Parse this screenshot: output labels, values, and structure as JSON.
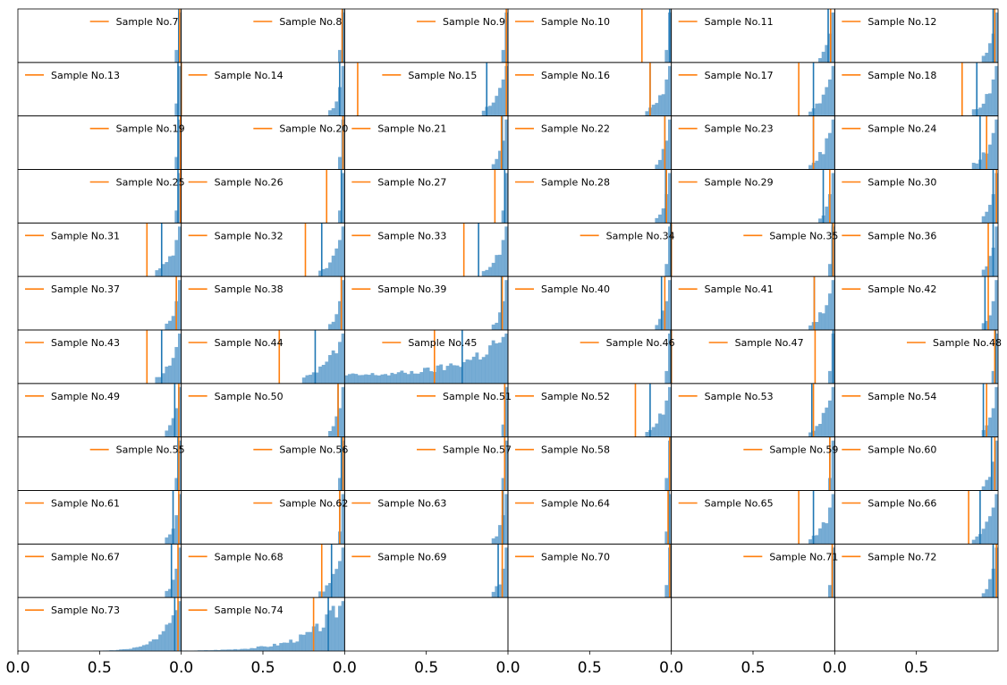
{
  "chart_data": {
    "type": "histogram-grid",
    "rows": 12,
    "cols": 6,
    "xlim": [
      0,
      1
    ],
    "x_ticks": [
      {
        "value": 0.0,
        "label": "0.0"
      },
      {
        "value": 0.5,
        "label": "0.5"
      }
    ],
    "x_tick_labels_on_row": 12,
    "y_ticks_shown": false,
    "grid": false,
    "legend_placement": "upper",
    "colors": {
      "histogram": "#4a90c6",
      "histogram_alpha": 0.75,
      "vertical_line_blue": "#1f77b4",
      "vertical_line_orange": "#ff7f0e",
      "axes_frame": "#000000"
    },
    "panels": [
      {
        "label": "Sample No.7",
        "orange": 0.99,
        "blue": 0.985,
        "legend": "right",
        "shape": "peak"
      },
      {
        "label": "Sample No.8",
        "orange": 0.985,
        "blue": 0.99,
        "legend": "right",
        "shape": "peak"
      },
      {
        "label": "Sample No.9",
        "orange": 0.99,
        "blue": 0.99,
        "legend": "right",
        "shape": "peak"
      },
      {
        "label": "Sample No.10",
        "orange": 0.82,
        "blue": 0.99,
        "legend": "left",
        "shape": "peak"
      },
      {
        "label": "Sample No.11",
        "orange": 0.975,
        "blue": 0.96,
        "legend": "left",
        "shape": "narrow"
      },
      {
        "label": "Sample No.12",
        "orange": 0.98,
        "blue": 0.97,
        "legend": "left",
        "shape": "narrow"
      },
      {
        "label": "Sample No.13",
        "orange": 1.0,
        "blue": 0.98,
        "legend": "left",
        "shape": "peak"
      },
      {
        "label": "Sample No.14",
        "orange": 1.08,
        "blue": 0.97,
        "legend": "left",
        "shape": "narrow"
      },
      {
        "label": "Sample No.15",
        "orange": 0.99,
        "blue": 0.87,
        "legend": "mid",
        "shape": "medium"
      },
      {
        "label": "Sample No.16",
        "orange": 0.87,
        "blue": 0.87,
        "legend": "left",
        "shape": "medium"
      },
      {
        "label": "Sample No.17",
        "orange": 0.78,
        "blue": 0.87,
        "legend": "left",
        "shape": "medium"
      },
      {
        "label": "Sample No.18",
        "orange": 0.78,
        "blue": 0.87,
        "legend": "left",
        "shape": "medium"
      },
      {
        "label": "Sample No.19",
        "orange": 0.995,
        "blue": 0.98,
        "legend": "right",
        "shape": "peak"
      },
      {
        "label": "Sample No.20",
        "orange": 0.99,
        "blue": 0.99,
        "legend": "right",
        "shape": "peak"
      },
      {
        "label": "Sample No.21",
        "orange": 0.96,
        "blue": 0.965,
        "legend": "left",
        "shape": "narrow"
      },
      {
        "label": "Sample No.22",
        "orange": 0.96,
        "blue": 0.96,
        "legend": "left",
        "shape": "narrow"
      },
      {
        "label": "Sample No.23",
        "orange": 0.87,
        "blue": 0.87,
        "legend": "left",
        "shape": "medium"
      },
      {
        "label": "Sample No.24",
        "orange": 0.93,
        "blue": 0.89,
        "legend": "left",
        "shape": "medium"
      },
      {
        "label": "Sample No.25",
        "orange": 0.995,
        "blue": 0.98,
        "legend": "right",
        "shape": "peak"
      },
      {
        "label": "Sample No.26",
        "orange": 0.89,
        "blue": 0.98,
        "legend": "left",
        "shape": "peak"
      },
      {
        "label": "Sample No.27",
        "orange": 0.92,
        "blue": 0.98,
        "legend": "left",
        "shape": "peak"
      },
      {
        "label": "Sample No.28",
        "orange": 0.97,
        "blue": 0.965,
        "legend": "left",
        "shape": "narrow"
      },
      {
        "label": "Sample No.29",
        "orange": 0.97,
        "blue": 0.93,
        "legend": "left",
        "shape": "narrow"
      },
      {
        "label": "Sample No.30",
        "orange": 0.99,
        "blue": 0.97,
        "legend": "left",
        "shape": "narrow"
      },
      {
        "label": "Sample No.31",
        "orange": 0.79,
        "blue": 0.88,
        "legend": "left",
        "shape": "medium"
      },
      {
        "label": "Sample No.32",
        "orange": 0.76,
        "blue": 0.86,
        "legend": "left",
        "shape": "medium"
      },
      {
        "label": "Sample No.33",
        "orange": 0.73,
        "blue": 0.82,
        "legend": "left",
        "shape": "medium"
      },
      {
        "label": "Sample No.34",
        "orange": 1.0,
        "blue": 0.995,
        "legend": "right",
        "shape": "peak"
      },
      {
        "label": "Sample No.35",
        "orange": 0.99,
        "blue": 0.985,
        "legend": "right",
        "shape": "peak"
      },
      {
        "label": "Sample No.36",
        "orange": 0.94,
        "blue": 0.97,
        "legend": "left",
        "shape": "narrow"
      },
      {
        "label": "Sample No.37",
        "orange": 0.97,
        "blue": 0.97,
        "legend": "left",
        "shape": "narrow"
      },
      {
        "label": "Sample No.38",
        "orange": 0.98,
        "blue": 0.98,
        "legend": "left",
        "shape": "narrow"
      },
      {
        "label": "Sample No.39",
        "orange": 0.965,
        "blue": 0.96,
        "legend": "left",
        "shape": "narrow"
      },
      {
        "label": "Sample No.40",
        "orange": 0.96,
        "blue": 0.94,
        "legend": "left",
        "shape": "narrow"
      },
      {
        "label": "Sample No.41",
        "orange": 0.875,
        "blue": 0.875,
        "legend": "left",
        "shape": "medium"
      },
      {
        "label": "Sample No.42",
        "orange": 0.94,
        "blue": 0.92,
        "legend": "left",
        "shape": "narrow"
      },
      {
        "label": "Sample No.43",
        "orange": 0.79,
        "blue": 0.88,
        "legend": "left",
        "shape": "medium"
      },
      {
        "label": "Sample No.44",
        "orange": 0.6,
        "blue": 0.82,
        "legend": "left",
        "shape": "wide"
      },
      {
        "label": "Sample No.45",
        "orange": 0.55,
        "blue": 0.72,
        "legend": "mid",
        "shape": "verywide"
      },
      {
        "label": "Sample No.46",
        "orange": 1.0,
        "blue": 0.995,
        "legend": "right",
        "shape": "peak"
      },
      {
        "label": "Sample No.47",
        "orange": 0.88,
        "blue": 0.99,
        "legend": "mid",
        "shape": "peak"
      },
      {
        "label": "Sample No.48",
        "orange": 0.98,
        "blue": 0.985,
        "legend": "right",
        "shape": "peak"
      },
      {
        "label": "Sample No.49",
        "orange": 0.985,
        "blue": 0.96,
        "legend": "left",
        "shape": "narrow"
      },
      {
        "label": "Sample No.50",
        "orange": 0.96,
        "blue": 0.96,
        "legend": "left",
        "shape": "narrow"
      },
      {
        "label": "Sample No.51",
        "orange": 0.98,
        "blue": 0.98,
        "legend": "right",
        "shape": "peak"
      },
      {
        "label": "Sample No.52",
        "orange": 0.78,
        "blue": 0.87,
        "legend": "left",
        "shape": "medium"
      },
      {
        "label": "Sample No.53",
        "orange": 0.87,
        "blue": 0.86,
        "legend": "left",
        "shape": "medium"
      },
      {
        "label": "Sample No.54",
        "orange": 0.93,
        "blue": 0.91,
        "legend": "left",
        "shape": "narrow"
      },
      {
        "label": "Sample No.55",
        "orange": 0.985,
        "blue": 0.98,
        "legend": "right",
        "shape": "peak"
      },
      {
        "label": "Sample No.56",
        "orange": 0.99,
        "blue": 0.98,
        "legend": "right",
        "shape": "peak"
      },
      {
        "label": "Sample No.57",
        "orange": 0.98,
        "blue": 0.98,
        "legend": "right",
        "shape": "peak"
      },
      {
        "label": "Sample No.58",
        "orange": 0.99,
        "blue": 0.995,
        "legend": "left",
        "shape": "peak"
      },
      {
        "label": "Sample No.59",
        "orange": 0.97,
        "blue": 0.97,
        "legend": "right",
        "shape": "peak"
      },
      {
        "label": "Sample No.60",
        "orange": 0.98,
        "blue": 0.96,
        "legend": "left",
        "shape": "narrow"
      },
      {
        "label": "Sample No.61",
        "orange": 0.985,
        "blue": 0.95,
        "legend": "left",
        "shape": "narrow"
      },
      {
        "label": "Sample No.62",
        "orange": 0.97,
        "blue": 0.97,
        "legend": "right",
        "shape": "peak"
      },
      {
        "label": "Sample No.63",
        "orange": 0.965,
        "blue": 0.97,
        "legend": "left",
        "shape": "narrow"
      },
      {
        "label": "Sample No.64",
        "orange": 0.98,
        "blue": 0.985,
        "legend": "left",
        "shape": "peak"
      },
      {
        "label": "Sample No.65",
        "orange": 0.78,
        "blue": 0.87,
        "legend": "left",
        "shape": "medium"
      },
      {
        "label": "Sample No.66",
        "orange": 0.82,
        "blue": 0.89,
        "legend": "left",
        "shape": "medium"
      },
      {
        "label": "Sample No.67",
        "orange": 0.98,
        "blue": 0.94,
        "legend": "left",
        "shape": "narrow"
      },
      {
        "label": "Sample No.68",
        "orange": 0.86,
        "blue": 0.92,
        "legend": "left",
        "shape": "medium"
      },
      {
        "label": "Sample No.69",
        "orange": 0.965,
        "blue": 0.94,
        "legend": "left",
        "shape": "narrow"
      },
      {
        "label": "Sample No.70",
        "orange": 0.99,
        "blue": 0.995,
        "legend": "left",
        "shape": "peak"
      },
      {
        "label": "Sample No.71",
        "orange": 0.985,
        "blue": 0.985,
        "legend": "right",
        "shape": "peak"
      },
      {
        "label": "Sample No.72",
        "orange": 0.99,
        "blue": 0.97,
        "legend": "left",
        "shape": "narrow"
      },
      {
        "label": "Sample No.73",
        "orange": 0.98,
        "blue": 0.96,
        "legend": "left",
        "shape": "long"
      },
      {
        "label": "Sample No.74",
        "orange": 0.81,
        "blue": 0.9,
        "legend": "left",
        "shape": "longwide"
      },
      {
        "label": "",
        "orange": null,
        "blue": null,
        "legend": "none",
        "shape": "empty"
      },
      {
        "label": "",
        "orange": null,
        "blue": null,
        "legend": "none",
        "shape": "empty"
      },
      {
        "label": "",
        "orange": null,
        "blue": null,
        "legend": "none",
        "shape": "empty"
      },
      {
        "label": "",
        "orange": null,
        "blue": null,
        "legend": "none",
        "shape": "empty"
      }
    ]
  }
}
